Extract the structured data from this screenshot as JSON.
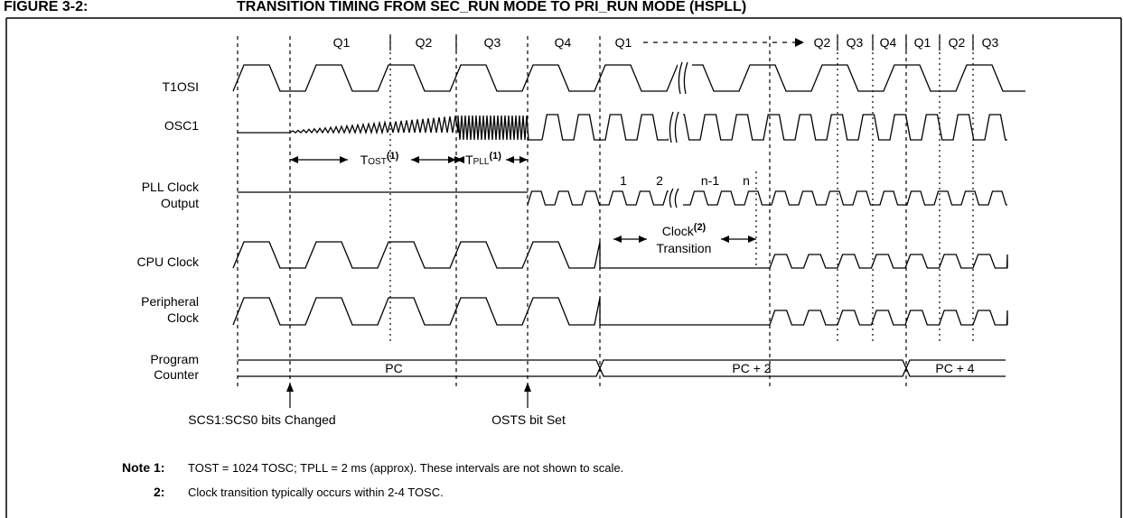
{
  "header": {
    "figure": "FIGURE 3-2:",
    "title": "TRANSITION TIMING FROM SEC_RUN MODE TO PRI_RUN MODE (HSPLL)"
  },
  "phases": [
    "Q1",
    "Q2",
    "Q3",
    "Q4",
    "Q1",
    "Q2",
    "Q3",
    "Q4",
    "Q1",
    "Q2",
    "Q3"
  ],
  "signals": [
    {
      "lines": [
        "T1OSI"
      ]
    },
    {
      "lines": [
        "OSC1"
      ]
    },
    {
      "lines": [
        "PLL Clock",
        "Output"
      ]
    },
    {
      "lines": [
        "CPU Clock"
      ]
    },
    {
      "lines": [
        "Peripheral",
        "Clock"
      ]
    },
    {
      "lines": [
        "Program",
        "Counter"
      ]
    }
  ],
  "intervals": {
    "tost": {
      "t": "T",
      "sub": "OST",
      "sup": "(1)"
    },
    "tpll": {
      "t": "T",
      "sub": "PLL",
      "sup": "(1)"
    }
  },
  "pll_counts": [
    "1",
    "2",
    "n-1",
    "n"
  ],
  "clock_transition": {
    "word": "Clock",
    "sup": "(2)",
    "line2": "Transition"
  },
  "bus_values": [
    "PC",
    "PC + 2",
    "PC + 4"
  ],
  "events": [
    "SCS1:SCS0 bits Changed",
    "OSTS bit Set"
  ],
  "notes": {
    "label": "Note",
    "items": [
      {
        "num": "1:",
        "text": "TOST = 1024 TOSC; TPLL = 2 ms (approx). These intervals are not shown to scale."
      },
      {
        "num": "2:",
        "text": "Clock transition typically occurs within 2-4 TOSC."
      }
    ]
  }
}
